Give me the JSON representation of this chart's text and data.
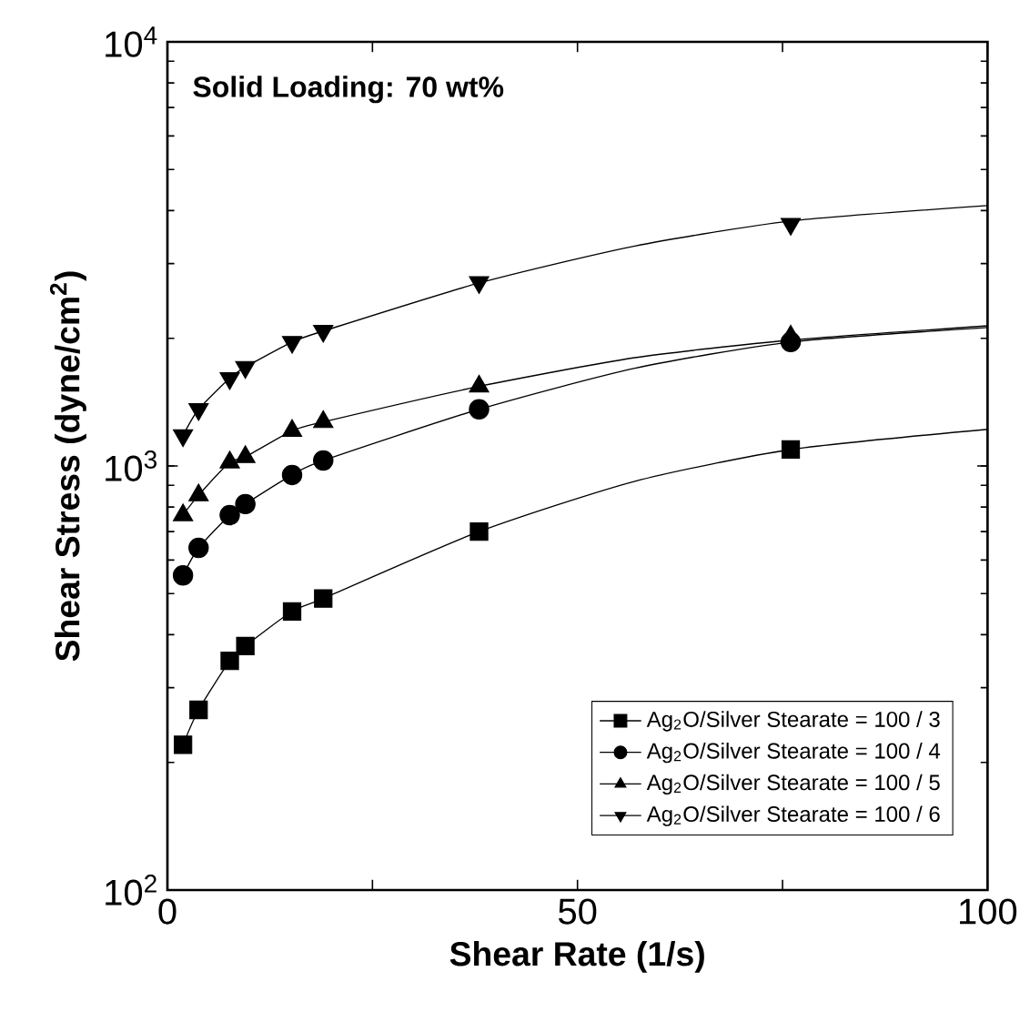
{
  "chart_data": {
    "type": "scatter",
    "xlabel": "Shear Rate (1/s)",
    "ylabel": "Shear Stress (dyne/cm$^{2}$)",
    "log": "y",
    "xlim": [
      0,
      100
    ],
    "ylim": [
      100,
      10000
    ],
    "xticks": [
      0,
      {
        "value": 25,
        "label": null
      },
      50,
      {
        "value": 75,
        "label": null
      },
      100
    ],
    "yticks": [
      {
        "value": 100,
        "label": "10$^{2}$"
      },
      {
        "value": 1000,
        "label": "10$^{3}$"
      },
      {
        "value": 10000,
        "label": "10$^{4}$"
      }
    ],
    "legend": "bottom right",
    "annotations": [
      "**Solid Loading: 70 wt%**"
    ],
    "series": [
      {
        "name": "Ag$_{2}$O/Silver Stearate = 100 / 3",
        "marker": "square",
        "color": "#000000",
        "x": [
          1.9,
          3.8,
          7.6,
          9.5,
          15.2,
          19,
          38,
          76
        ],
        "values": [
          220,
          266,
          347,
          376,
          454,
          487,
          700,
          1093
        ]
      },
      {
        "name": "Ag$_{2}$O/Silver Stearate = 100 / 4",
        "marker": "circle",
        "color": "#000000",
        "x": [
          1.9,
          3.8,
          7.6,
          9.5,
          15.2,
          19,
          38,
          76
        ],
        "values": [
          552,
          641,
          766,
          813,
          952,
          1030,
          1360,
          1960
        ]
      },
      {
        "name": "Ag$_{2}$O/Silver Stearate = 100 / 5",
        "marker": "triangle",
        "color": "#000000",
        "x": [
          1.9,
          3.8,
          7.6,
          9.5,
          15.2,
          19,
          38,
          76
        ],
        "values": [
          766,
          853,
          1020,
          1050,
          1210,
          1270,
          1540,
          2020
        ]
      },
      {
        "name": "Ag$_{2}$O/Silver Stearate = 100 / 6",
        "marker": "triangle-down",
        "color": "#000000",
        "x": [
          1.9,
          3.8,
          7.6,
          9.5,
          15.2,
          19,
          38,
          76
        ],
        "values": [
          1180,
          1360,
          1610,
          1710,
          1960,
          2080,
          2710,
          3720
        ]
      },
      {
        "type": "line",
        "marker": "none",
        "color": "#000000",
        "x": [
          1.9,
          3.8,
          7.6,
          9.5,
          15.2,
          19,
          38,
          57,
          76,
          100
        ],
        "values": [
          220,
          266,
          347,
          376,
          454,
          487,
          700,
          920,
          1093,
          1220
        ]
      },
      {
        "type": "line",
        "marker": "none",
        "color": "#000000",
        "x": [
          1.9,
          3.8,
          7.6,
          9.5,
          15.2,
          19,
          38,
          57,
          76,
          100
        ],
        "values": [
          552,
          641,
          766,
          813,
          952,
          1030,
          1360,
          1700,
          1960,
          2120
        ]
      },
      {
        "type": "line",
        "marker": "none",
        "color": "#000000",
        "x": [
          1.9,
          3.8,
          7.6,
          9.5,
          15.2,
          19,
          38,
          57,
          76,
          100
        ],
        "values": [
          766,
          853,
          1020,
          1050,
          1210,
          1270,
          1540,
          1800,
          1980,
          2140
        ]
      },
      {
        "type": "line",
        "marker": "none",
        "color": "#000000",
        "x": [
          1.9,
          3.8,
          7.6,
          9.5,
          15.2,
          19,
          38,
          57,
          76,
          100
        ],
        "values": [
          1180,
          1360,
          1610,
          1710,
          1960,
          2080,
          2700,
          3300,
          3780,
          4110
        ]
      }
    ]
  }
}
